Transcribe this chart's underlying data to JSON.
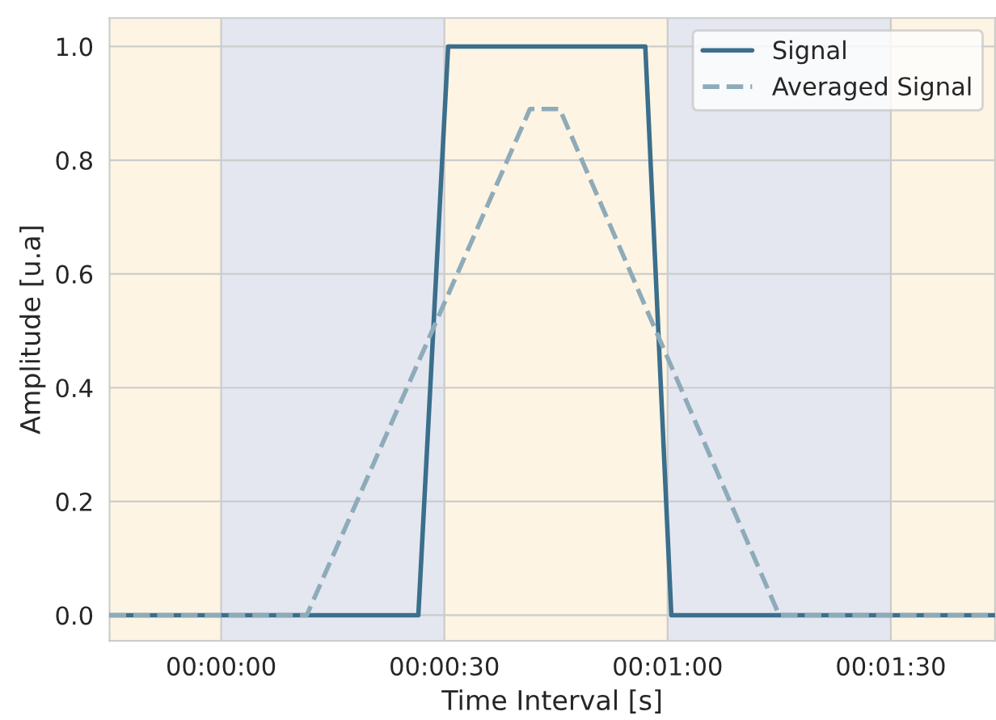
{
  "chart_data": {
    "type": "line",
    "xlabel": "Time Interval [s]",
    "ylabel": "Amplitude [u.a]",
    "xlim": [
      -15,
      104
    ],
    "ylim": [
      -0.045,
      1.05
    ],
    "xticks": [
      {
        "value": 0,
        "label": "00:00:00"
      },
      {
        "value": 30,
        "label": "00:00:30"
      },
      {
        "value": 60,
        "label": "00:01:00"
      },
      {
        "value": 90,
        "label": "00:01:30"
      }
    ],
    "yticks": [
      {
        "value": 0,
        "label": "0.0"
      },
      {
        "value": 0.2,
        "label": "0.2"
      },
      {
        "value": 0.4,
        "label": "0.4"
      },
      {
        "value": 0.6,
        "label": "0.6"
      },
      {
        "value": 0.8,
        "label": "0.8"
      },
      {
        "value": 1.0,
        "label": "1.0"
      }
    ],
    "grid": true,
    "legend": "top right",
    "bands": [
      {
        "axis": "x",
        "from": -15,
        "to": 0,
        "color": "#fdf4e3"
      },
      {
        "axis": "x",
        "from": 0,
        "to": 30,
        "color": "#e4e7f0"
      },
      {
        "axis": "x",
        "from": 30,
        "to": 60,
        "color": "#fdf4e3"
      },
      {
        "axis": "x",
        "from": 60,
        "to": 90,
        "color": "#e4e7f0"
      },
      {
        "axis": "x",
        "from": 90,
        "to": 104,
        "color": "#fdf4e3"
      }
    ],
    "series": [
      {
        "name": "Signal",
        "color": "#3b6f8c",
        "line_style": "solid",
        "x": [
          -15,
          26.5,
          30.5,
          57,
          60.5,
          104
        ],
        "values": [
          0,
          0,
          1,
          1,
          0,
          0
        ]
      },
      {
        "name": "Averaged Signal",
        "color": "#8eabb9",
        "line_style": "dashed",
        "x": [
          -15,
          11.5,
          41.5,
          45.5,
          75,
          104
        ],
        "values": [
          0,
          0,
          0.89,
          0.89,
          0,
          0
        ]
      }
    ]
  }
}
